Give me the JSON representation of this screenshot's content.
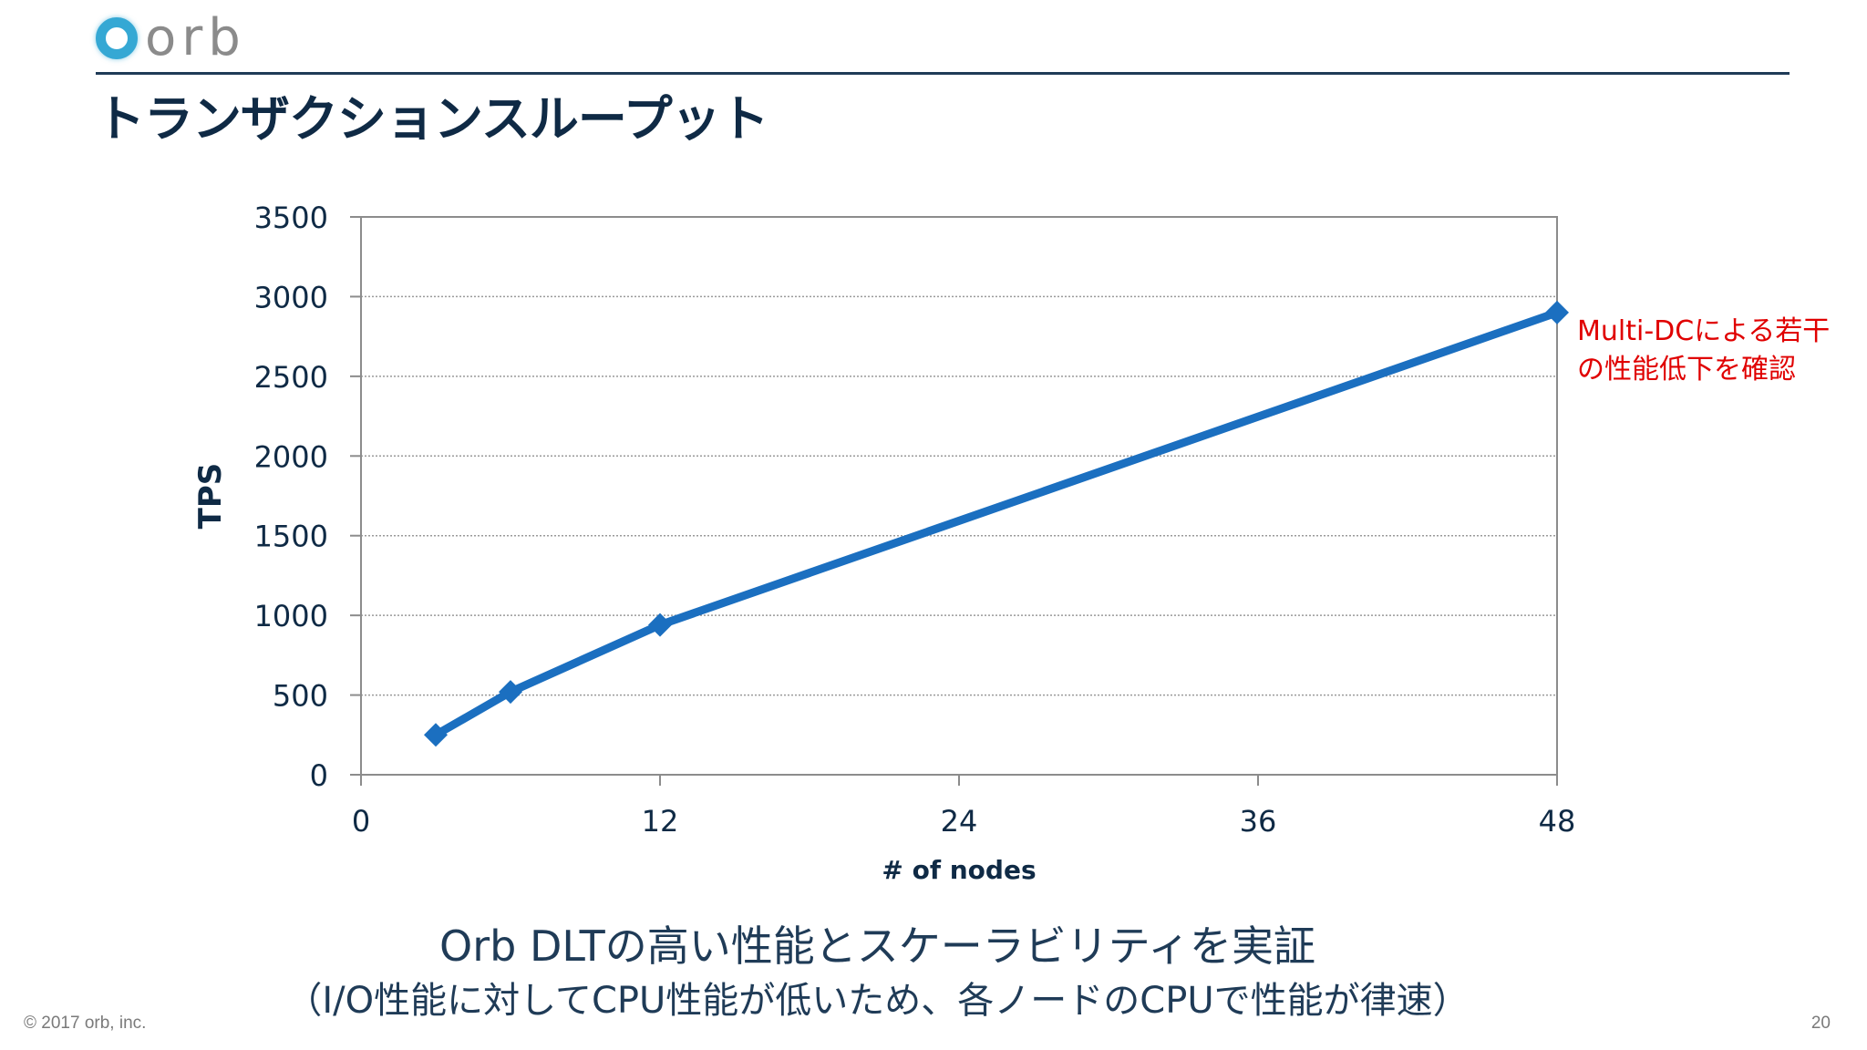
{
  "header": {
    "logo_text": "orb",
    "title": "トランザクションスループット"
  },
  "colors": {
    "series": "#1b6fc0",
    "title": "#0f2a45",
    "annotation": "#e00000",
    "rule": "#1f3b57",
    "logo_ring": "#35a8d4"
  },
  "chart_data": {
    "type": "line",
    "title": "",
    "xlabel": "# of nodes",
    "ylabel": "TPS",
    "xlim": [
      0,
      48
    ],
    "ylim": [
      0,
      3500
    ],
    "x_ticks": [
      0,
      12,
      24,
      36,
      48
    ],
    "y_ticks": [
      0,
      500,
      1000,
      1500,
      2000,
      2500,
      3000,
      3500
    ],
    "grid": "horizontal dotted",
    "legend": "none",
    "series": [
      {
        "x": [
          3,
          6,
          12,
          48
        ],
        "y": [
          250,
          520,
          940,
          2900
        ],
        "marker": "diamond"
      }
    ],
    "annotations": [
      {
        "lines": [
          "Multi-DCによる若干",
          "の性能低下を確認"
        ],
        "x": 48,
        "y": 2900,
        "color": "#e00000"
      }
    ]
  },
  "summary": {
    "line1": "Orb DLTの高い性能とスケーラビリティを実証",
    "line2": "（I/O性能に対してCPU性能が低いため、各ノードのCPUで性能が律速）"
  },
  "footer": {
    "copyright": "© 2017 orb, inc.",
    "page_number": "20"
  }
}
